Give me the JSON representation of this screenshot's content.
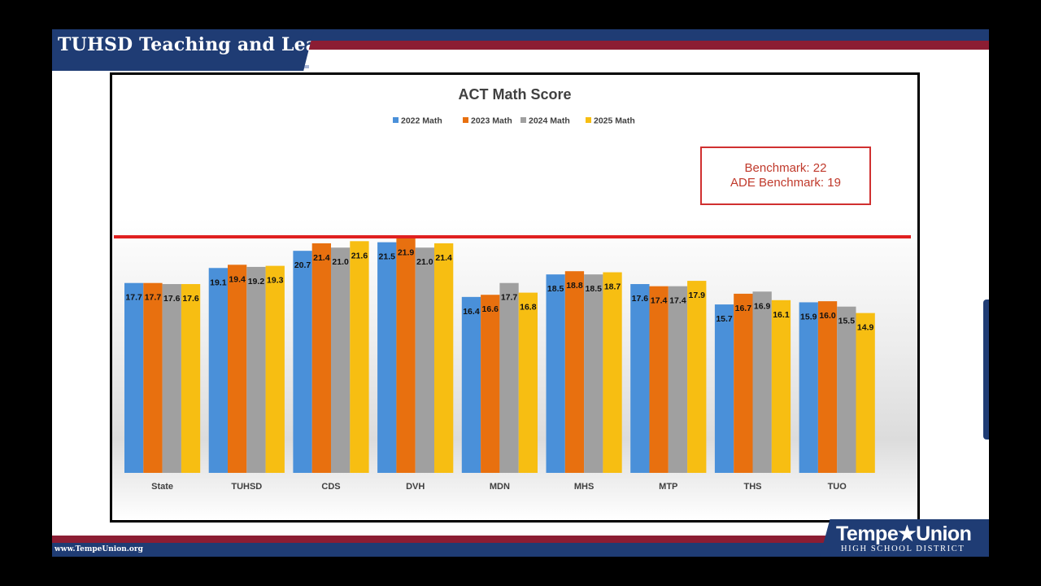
{
  "header": {
    "title": "TUHSD Teaching and Learning"
  },
  "footer": {
    "url": "www.TempeUnion.org"
  },
  "logo": {
    "name": "Tempe★Union",
    "subtitle": "HIGH SCHOOL DISTRICT"
  },
  "colors": {
    "navy": "#1f3c74",
    "maroon": "#8c1d33"
  },
  "chart_data": {
    "type": "bar",
    "title": "ACT Math Score",
    "xlabel": "",
    "ylabel": "",
    "ylim": [
      0,
      23
    ],
    "grid": false,
    "legend_position": "top",
    "categories": [
      "State",
      "TUHSD",
      "CDS",
      "DVH",
      "MDN",
      "MHS",
      "MTP",
      "THS",
      "TUO"
    ],
    "series": [
      {
        "name": "2022 Math",
        "color": "#4a90d9",
        "values": [
          17.7,
          19.1,
          20.7,
          21.5,
          16.4,
          18.5,
          17.6,
          15.7,
          15.9
        ]
      },
      {
        "name": "2023 Math",
        "color": "#e8700f",
        "values": [
          17.7,
          19.4,
          21.4,
          21.9,
          16.6,
          18.8,
          17.4,
          16.7,
          16.0
        ]
      },
      {
        "name": "2024 Math",
        "color": "#a0a0a0",
        "values": [
          17.6,
          19.2,
          21.0,
          21.0,
          17.7,
          18.5,
          17.4,
          16.9,
          15.5
        ]
      },
      {
        "name": "2025 Math",
        "color": "#f7be12",
        "values": [
          17.6,
          19.3,
          21.6,
          21.4,
          16.8,
          18.7,
          17.9,
          16.1,
          14.9
        ]
      }
    ],
    "reference_line": {
      "value": 22,
      "color": "#e02020"
    },
    "annotation": {
      "lines": [
        "Benchmark: 22",
        "ADE Benchmark: 19"
      ],
      "color": "#c0392b"
    }
  }
}
